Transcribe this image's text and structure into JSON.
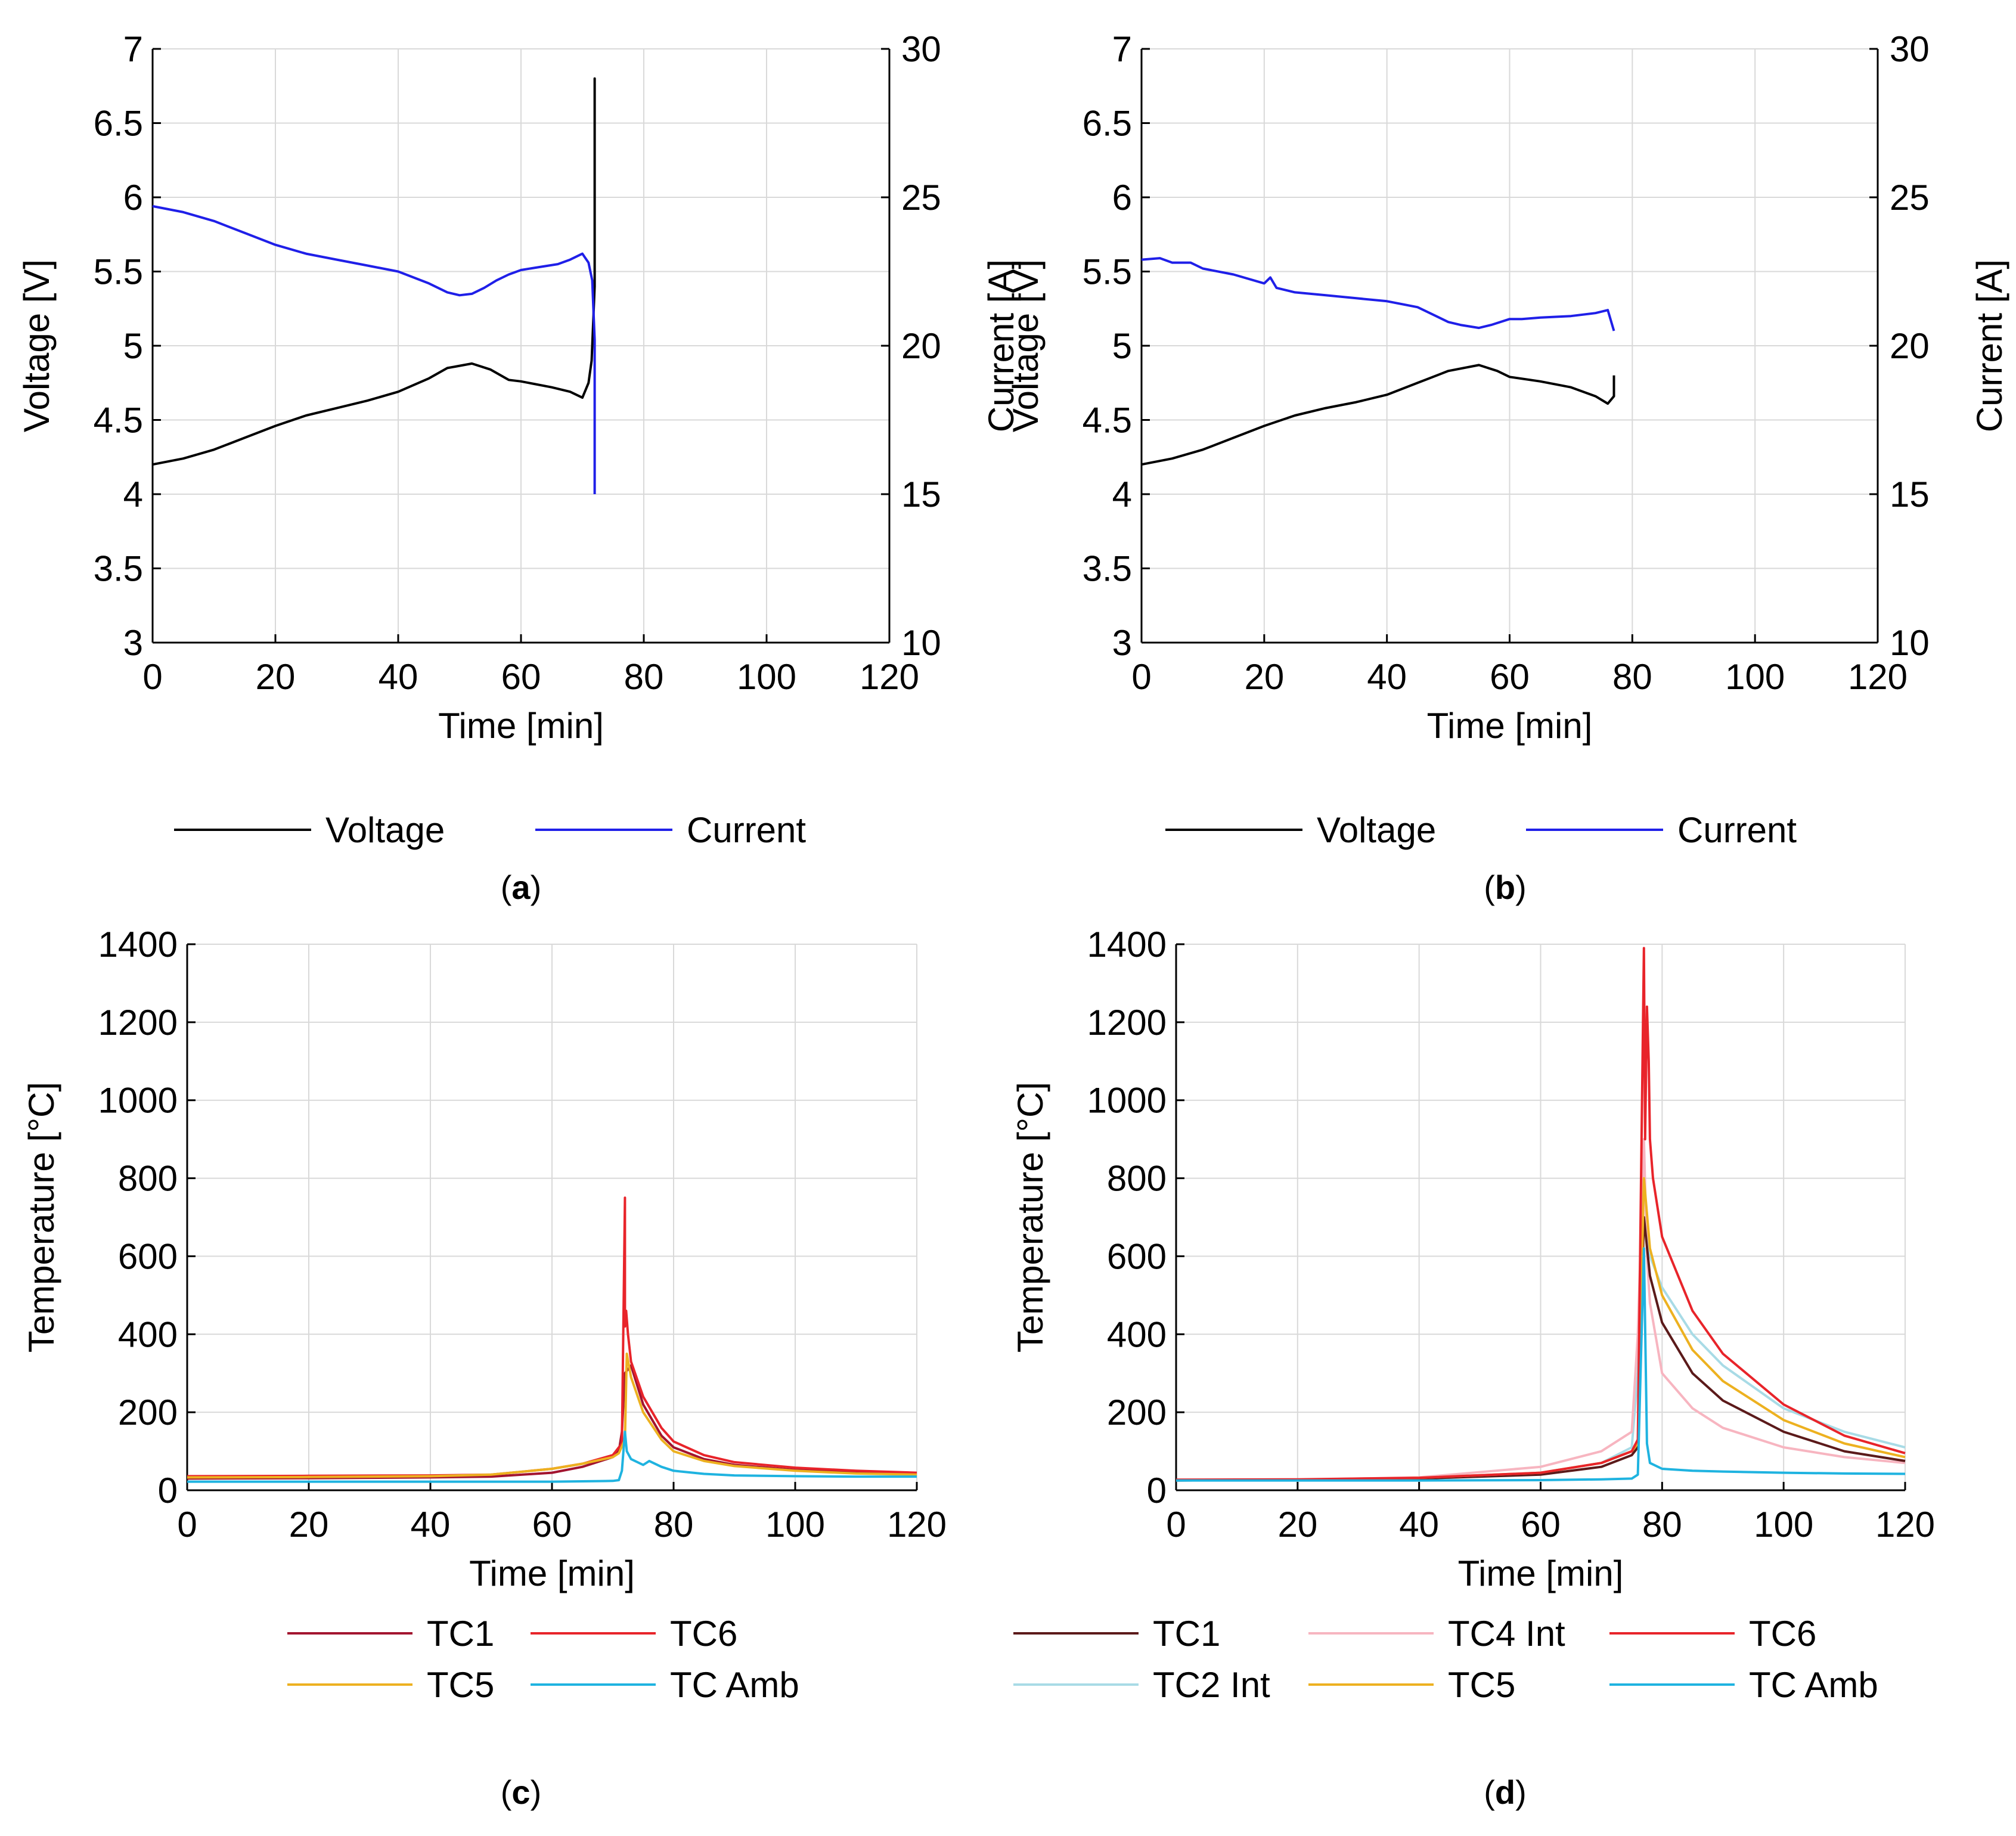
{
  "colors": {
    "voltage": "#000000",
    "current": "#1f1fe8",
    "tc1": "#a2142f",
    "tc1_d": "#5b1a1a",
    "tc2int": "#a8dbe6",
    "tc4int": "#f7b5c0",
    "tc5": "#edb120",
    "tc6": "#e8242a",
    "tcamb": "#1fb3e0",
    "grid": "#d9d9d9"
  },
  "chart_data": [
    {
      "id": "a",
      "type": "line",
      "caption_letter": "a",
      "xlabel": "Time [min]",
      "ylabel": "Voltage [V]",
      "y2label": "Current [A]",
      "xlim": [
        0,
        120
      ],
      "ylim": [
        3,
        7
      ],
      "y2lim": [
        10,
        30
      ],
      "xticks": [
        "0",
        "20",
        "40",
        "60",
        "80",
        "100",
        "120"
      ],
      "yticks": [
        "3",
        "3.5",
        "4",
        "4.5",
        "5",
        "5.5",
        "6",
        "6.5",
        "7"
      ],
      "y2ticks": [
        "10",
        "15",
        "20",
        "25",
        "30"
      ],
      "series": [
        {
          "name": "Voltage",
          "axis": "left",
          "color": "voltage",
          "x": [
            0,
            5,
            10,
            15,
            20,
            25,
            30,
            35,
            40,
            45,
            48,
            52,
            55,
            58,
            60,
            65,
            68,
            70,
            71,
            71.5,
            72,
            72,
            72
          ],
          "y": [
            4.2,
            4.24,
            4.3,
            4.38,
            4.46,
            4.53,
            4.58,
            4.63,
            4.69,
            4.78,
            4.85,
            4.88,
            4.84,
            4.77,
            4.76,
            4.72,
            4.69,
            4.65,
            4.75,
            4.9,
            5.4,
            6.8,
            5.9
          ]
        },
        {
          "name": "Current",
          "axis": "right",
          "color": "current",
          "x": [
            0,
            5,
            10,
            15,
            20,
            25,
            30,
            35,
            40,
            45,
            48,
            50,
            52,
            54,
            56,
            58,
            60,
            63,
            66,
            68,
            70,
            71,
            71.6,
            72,
            72,
            72
          ],
          "y": [
            24.7,
            24.5,
            24.2,
            23.8,
            23.4,
            23.1,
            22.9,
            22.7,
            22.5,
            22.1,
            21.8,
            21.7,
            21.75,
            21.95,
            22.2,
            22.4,
            22.55,
            22.65,
            22.75,
            22.9,
            23.1,
            22.8,
            22.2,
            20.2,
            17,
            15
          ]
        }
      ],
      "legend": [
        "Voltage",
        "Current"
      ]
    },
    {
      "id": "b",
      "type": "line",
      "caption_letter": "b",
      "xlabel": "Time [min]",
      "ylabel": "Voltage [V]",
      "y2label": "Current [A]",
      "xlim": [
        0,
        120
      ],
      "ylim": [
        3,
        7
      ],
      "y2lim": [
        10,
        30
      ],
      "xticks": [
        "0",
        "20",
        "40",
        "60",
        "80",
        "100",
        "120"
      ],
      "yticks": [
        "3",
        "3.5",
        "4",
        "4.5",
        "5",
        "5.5",
        "6",
        "6.5",
        "7"
      ],
      "y2ticks": [
        "10",
        "15",
        "20",
        "25",
        "30"
      ],
      "series": [
        {
          "name": "Voltage",
          "axis": "left",
          "color": "voltage",
          "x": [
            0,
            5,
            10,
            15,
            20,
            25,
            30,
            35,
            40,
            45,
            50,
            55,
            58,
            60,
            65,
            70,
            74,
            76,
            77,
            77
          ],
          "y": [
            4.2,
            4.24,
            4.3,
            4.38,
            4.46,
            4.53,
            4.58,
            4.62,
            4.67,
            4.75,
            4.83,
            4.87,
            4.83,
            4.79,
            4.76,
            4.72,
            4.66,
            4.61,
            4.66,
            4.8
          ]
        },
        {
          "name": "Current",
          "axis": "right",
          "color": "current",
          "x": [
            0,
            3,
            5,
            8,
            10,
            15,
            20,
            21,
            22,
            25,
            30,
            35,
            40,
            45,
            48,
            50,
            52,
            55,
            57,
            60,
            62,
            65,
            70,
            74,
            76,
            77
          ],
          "y": [
            22.9,
            22.95,
            22.8,
            22.8,
            22.6,
            22.4,
            22.1,
            22.3,
            21.95,
            21.8,
            21.7,
            21.6,
            21.5,
            21.3,
            21.0,
            20.8,
            20.7,
            20.6,
            20.7,
            20.9,
            20.9,
            20.95,
            21.0,
            21.1,
            21.2,
            20.5
          ]
        }
      ],
      "legend": [
        "Voltage",
        "Current"
      ]
    },
    {
      "id": "c",
      "type": "line",
      "caption_letter": "c",
      "xlabel": "Time [min]",
      "ylabel": "Temperature [°C]",
      "xlim": [
        0,
        120
      ],
      "ylim": [
        0,
        1400
      ],
      "xticks": [
        "0",
        "20",
        "40",
        "60",
        "80",
        "100",
        "120"
      ],
      "yticks": [
        "0",
        "200",
        "400",
        "600",
        "800",
        "1000",
        "1200",
        "1400"
      ],
      "series": [
        {
          "name": "TC1",
          "color": "tc1",
          "x": [
            0,
            20,
            40,
            50,
            60,
            65,
            70,
            71,
            71.5,
            72,
            73,
            75,
            78,
            80,
            85,
            90,
            100,
            110,
            120
          ],
          "y": [
            30,
            31,
            33,
            35,
            45,
            60,
            85,
            100,
            150,
            300,
            320,
            220,
            140,
            110,
            80,
            65,
            52,
            45,
            42
          ]
        },
        {
          "name": "TC6",
          "color": "tc6",
          "x": [
            0,
            20,
            40,
            50,
            60,
            65,
            70,
            71,
            71.5,
            72,
            72,
            72.2,
            72.5,
            73,
            75,
            78,
            80,
            85,
            90,
            100,
            110,
            120
          ],
          "y": [
            36,
            37,
            38,
            40,
            55,
            68,
            90,
            110,
            120,
            750,
            420,
            460,
            400,
            330,
            240,
            160,
            125,
            90,
            72,
            58,
            50,
            45
          ]
        },
        {
          "name": "TC5",
          "color": "tc5",
          "x": [
            0,
            20,
            40,
            50,
            60,
            65,
            70,
            71,
            72,
            72.3,
            73,
            75,
            78,
            80,
            85,
            90,
            100,
            110,
            120
          ],
          "y": [
            33,
            34,
            36,
            40,
            55,
            68,
            85,
            95,
            130,
            350,
            290,
            200,
            130,
            100,
            75,
            62,
            50,
            43,
            40
          ]
        },
        {
          "name": "TC Amb",
          "color": "tcamb",
          "x": [
            0,
            20,
            40,
            60,
            70,
            71,
            71.5,
            72,
            72.3,
            73,
            75,
            76,
            78,
            80,
            85,
            90,
            100,
            110,
            120
          ],
          "y": [
            22,
            22,
            22,
            22,
            24,
            26,
            50,
            150,
            100,
            80,
            65,
            75,
            60,
            50,
            42,
            38,
            36,
            35,
            35
          ]
        }
      ],
      "legend": [
        "TC1",
        "TC6",
        "TC5",
        "TC Amb"
      ]
    },
    {
      "id": "d",
      "type": "line",
      "caption_letter": "d",
      "xlabel": "Time [min]",
      "ylabel": "Temperature [°C]",
      "xlim": [
        0,
        120
      ],
      "ylim": [
        0,
        1400
      ],
      "xticks": [
        "0",
        "20",
        "40",
        "60",
        "80",
        "100",
        "120"
      ],
      "yticks": [
        "0",
        "200",
        "400",
        "600",
        "800",
        "1000",
        "1200",
        "1400"
      ],
      "series": [
        {
          "name": "TC2 Int",
          "color": "tc2int",
          "x": [
            0,
            20,
            40,
            60,
            70,
            75,
            76,
            77,
            78,
            80,
            85,
            90,
            100,
            110,
            120
          ],
          "y": [
            25,
            26,
            30,
            45,
            70,
            110,
            300,
            700,
            600,
            520,
            400,
            320,
            210,
            150,
            110
          ]
        },
        {
          "name": "TC4 Int",
          "color": "tc4int",
          "x": [
            0,
            20,
            40,
            60,
            70,
            75,
            76,
            77,
            77.5,
            78,
            80,
            85,
            90,
            100,
            110,
            120
          ],
          "y": [
            25,
            27,
            33,
            60,
            100,
            150,
            400,
            900,
            600,
            480,
            300,
            210,
            160,
            110,
            85,
            70
          ]
        },
        {
          "name": "TC1",
          "color": "tc1_d",
          "x": [
            0,
            20,
            40,
            60,
            70,
            75,
            76,
            77,
            78,
            80,
            85,
            90,
            100,
            110,
            120
          ],
          "y": [
            25,
            26,
            30,
            40,
            60,
            90,
            110,
            700,
            550,
            430,
            300,
            230,
            150,
            100,
            75
          ]
        },
        {
          "name": "TC5",
          "color": "tc5",
          "x": [
            0,
            20,
            40,
            60,
            70,
            75,
            76,
            77,
            78,
            80,
            85,
            90,
            100,
            110,
            120
          ],
          "y": [
            26,
            27,
            32,
            45,
            70,
            100,
            120,
            800,
            620,
            500,
            360,
            280,
            180,
            120,
            85
          ]
        },
        {
          "name": "TC6",
          "color": "tc6",
          "x": [
            0,
            20,
            40,
            60,
            70,
            75,
            76,
            77,
            77.2,
            77.5,
            77.8,
            78,
            78.5,
            80,
            85,
            90,
            100,
            110,
            120
          ],
          "y": [
            27,
            28,
            32,
            45,
            70,
            100,
            130,
            1390,
            900,
            1240,
            1100,
            900,
            800,
            650,
            460,
            350,
            220,
            140,
            95
          ]
        },
        {
          "name": "TC Amb",
          "color": "tcamb",
          "x": [
            0,
            20,
            40,
            60,
            70,
            75,
            76,
            77,
            77.5,
            78,
            80,
            85,
            90,
            100,
            110,
            120
          ],
          "y": [
            25,
            25,
            25,
            26,
            28,
            30,
            40,
            620,
            120,
            70,
            55,
            50,
            48,
            45,
            43,
            42
          ]
        }
      ],
      "legend": [
        "TC1",
        "TC4 Int",
        "TC6",
        "TC2 Int",
        "TC5",
        "TC Amb"
      ]
    }
  ]
}
